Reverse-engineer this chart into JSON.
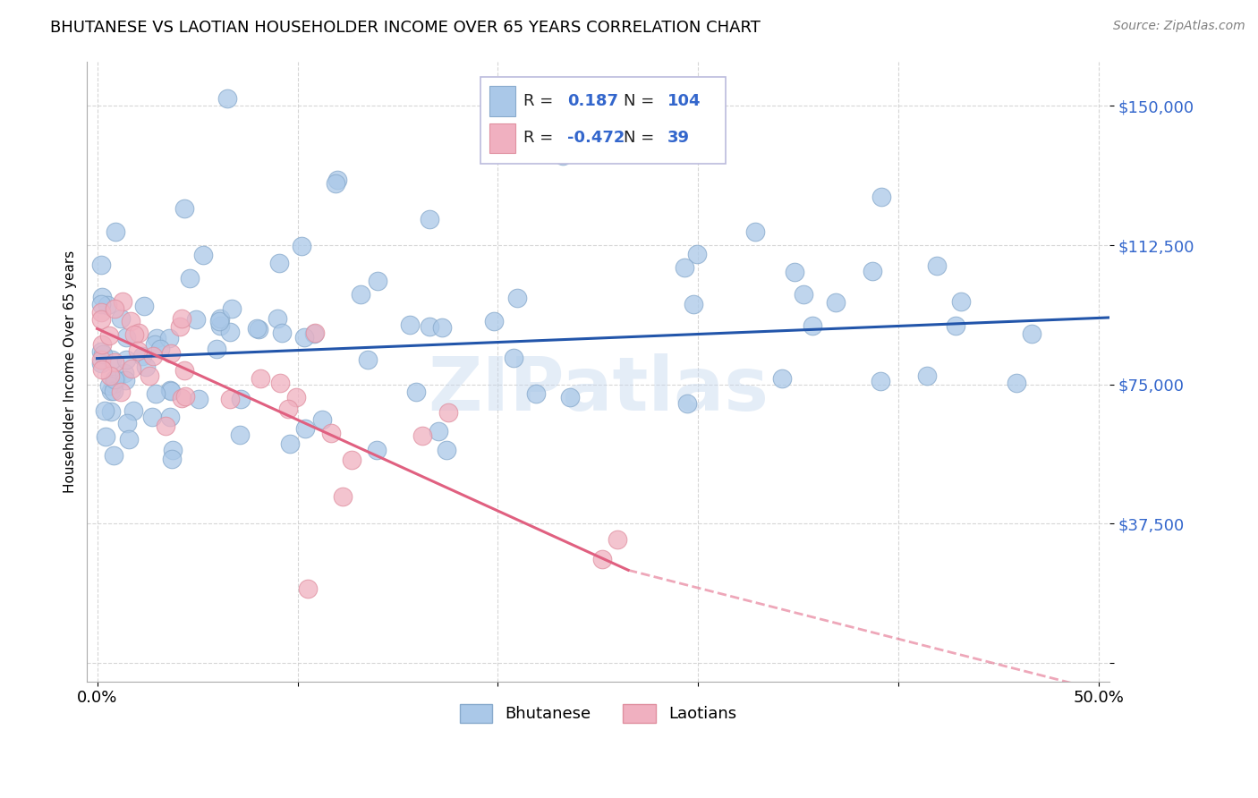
{
  "title": "BHUTANESE VS LAOTIAN HOUSEHOLDER INCOME OVER 65 YEARS CORRELATION CHART",
  "source": "Source: ZipAtlas.com",
  "ylabel": "Householder Income Over 65 years",
  "yticks": [
    0,
    37500,
    75000,
    112500,
    150000
  ],
  "ytick_labels": [
    "",
    "$37,500",
    "$75,000",
    "$112,500",
    "$150,000"
  ],
  "xlim": [
    -0.005,
    0.505
  ],
  "ylim": [
    -5000,
    162000
  ],
  "r_bhutanese": "0.187",
  "n_bhutanese": "104",
  "r_laotian": "-0.472",
  "n_laotian": "39",
  "blue_scatter": "#aac8e8",
  "pink_scatter": "#f0b0c0",
  "blue_edge": "#88aacc",
  "pink_edge": "#e090a0",
  "line_blue": "#2255aa",
  "line_pink": "#e06080",
  "watermark": "ZIPatlas",
  "background_color": "#ffffff",
  "grid_color": "#cccccc",
  "blue_legend_fill": "#aac8e8",
  "pink_legend_fill": "#f0b0c0",
  "legend_text_blue": "#3366cc",
  "legend_text_dark": "#222222",
  "trendline_blue_x0": 0.0,
  "trendline_blue_x1": 0.505,
  "trendline_blue_y0": 82000,
  "trendline_blue_y1": 93000,
  "trendline_pink_solid_x0": 0.0,
  "trendline_pink_solid_x1": 0.265,
  "trendline_pink_solid_y0": 90000,
  "trendline_pink_solid_y1": 25000,
  "trendline_pink_dash_x0": 0.265,
  "trendline_pink_dash_x1": 0.505,
  "trendline_pink_dash_y0": 25000,
  "trendline_pink_dash_y1": -8000,
  "seed_blue": 42,
  "seed_pink": 99,
  "n_blue": 104,
  "n_pink": 39
}
